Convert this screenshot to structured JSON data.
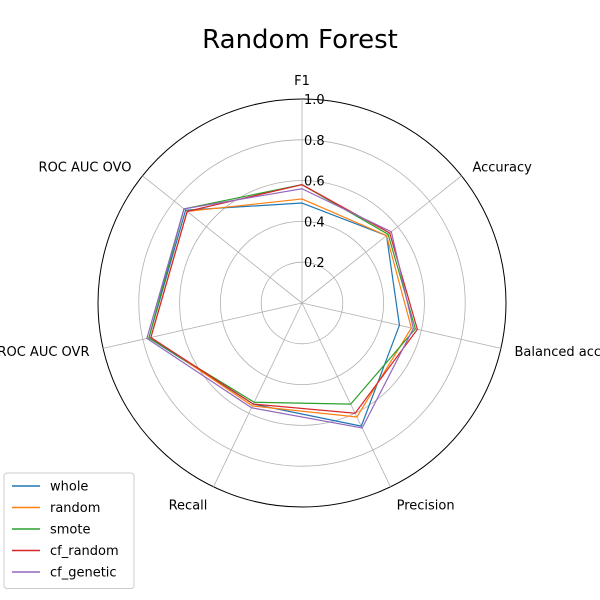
{
  "chart_data": {
    "type": "radar",
    "title": "Random Forest",
    "axes": [
      "F1",
      "Accuracy",
      "Balanced accuracy",
      "Precision",
      "Recall",
      "ROC AUC OVR",
      "ROC AUC OVO"
    ],
    "rlim": [
      0,
      1.0
    ],
    "rticks": [
      0.2,
      0.4,
      0.6,
      0.8,
      1.0
    ],
    "rtick_labels": [
      "0.2",
      "0.4",
      "0.6",
      "0.8",
      "1.0"
    ],
    "grid": true,
    "legend_position": "lower-left",
    "series": [
      {
        "name": "whole",
        "color": "#1f77b4",
        "values": [
          0.49,
          0.53,
          0.49,
          0.67,
          0.55,
          0.77,
          0.73
        ]
      },
      {
        "name": "random",
        "color": "#ff7f0e",
        "values": [
          0.51,
          0.53,
          0.55,
          0.62,
          0.56,
          0.76,
          0.72
        ]
      },
      {
        "name": "smote",
        "color": "#2ca02c",
        "values": [
          0.58,
          0.54,
          0.57,
          0.55,
          0.54,
          0.77,
          0.74
        ]
      },
      {
        "name": "cf_random",
        "color": "#d62728",
        "values": [
          0.58,
          0.55,
          0.58,
          0.6,
          0.55,
          0.76,
          0.72
        ]
      },
      {
        "name": "cf_genetic",
        "color": "#9467bd",
        "values": [
          0.56,
          0.56,
          0.56,
          0.68,
          0.57,
          0.78,
          0.74
        ]
      }
    ]
  }
}
